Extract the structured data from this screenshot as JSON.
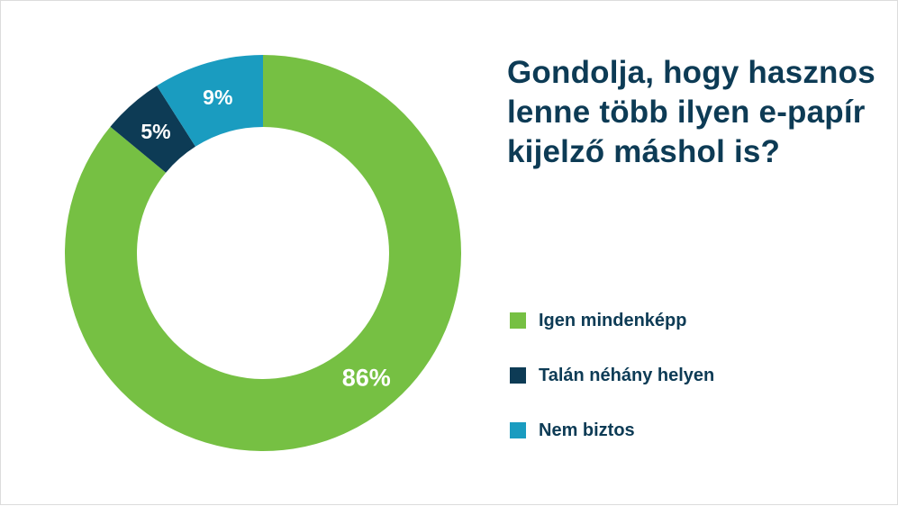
{
  "chart_data": {
    "type": "pie",
    "title": "Gondolja, hogy hasznos lenne több ilyen e-papír kijelző máshol is?",
    "categories": [
      "Igen mindenképp",
      "Talán néhány helyen",
      "Nem biztos"
    ],
    "values": [
      86,
      5,
      9
    ],
    "labels": [
      "86%",
      "5%",
      "9%"
    ],
    "colors": [
      "#76c043",
      "#0d3b55",
      "#1a9cc0"
    ],
    "legend_position": "right",
    "donut": true
  }
}
